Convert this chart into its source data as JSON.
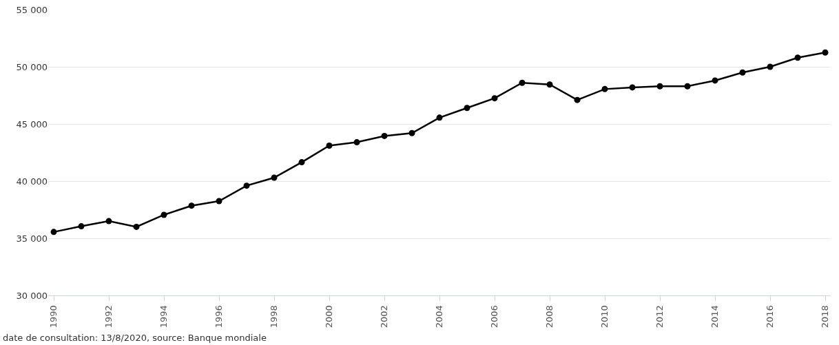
{
  "chart_data": {
    "type": "line",
    "x": [
      1990,
      1991,
      1992,
      1993,
      1994,
      1995,
      1996,
      1997,
      1998,
      1999,
      2000,
      2001,
      2002,
      2003,
      2004,
      2005,
      2006,
      2007,
      2008,
      2009,
      2010,
      2011,
      2012,
      2013,
      2014,
      2015,
      2016,
      2017,
      2018
    ],
    "series": [
      {
        "color": "#000000",
        "values": [
          35550,
          36050,
          36500,
          36000,
          37050,
          37850,
          38250,
          39600,
          40300,
          41650,
          43100,
          43400,
          43950,
          44200,
          45550,
          46400,
          47250,
          48600,
          48450,
          47100,
          48050,
          48200,
          48300,
          48300,
          48800,
          49500,
          50000,
          50800,
          51250
        ]
      }
    ],
    "xlim": [
      1989.8,
      2018.2
    ],
    "xticks": [
      1990,
      1992,
      1994,
      1996,
      1998,
      2000,
      2002,
      2004,
      2006,
      2008,
      2010,
      2012,
      2014,
      2016,
      2018
    ],
    "ylim": [
      30000,
      55000
    ],
    "yticks": [
      {
        "value": 30000,
        "label": "30 000"
      },
      {
        "value": 35000,
        "label": "35 000"
      },
      {
        "value": 40000,
        "label": "40 000"
      },
      {
        "value": 45000,
        "label": "45 000"
      },
      {
        "value": 50000,
        "label": "50 000"
      },
      {
        "value": 55000,
        "label": "55 000"
      }
    ],
    "grid": "y",
    "marker": "circle",
    "line_style": "solid",
    "annotations": [
      "date de consultation: 13/8/2020, source: Banque mondiale"
    ]
  }
}
